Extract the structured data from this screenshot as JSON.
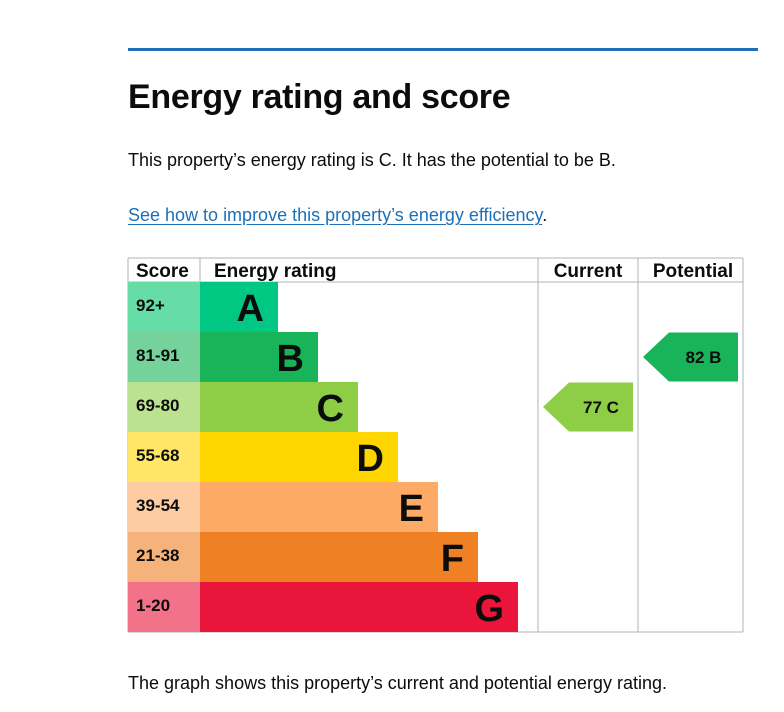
{
  "page": {
    "title": "Energy rating and score",
    "summary": "This property’s energy rating is C. It has the potential to be B.",
    "improve_link": "See how to improve this property’s energy efficiency",
    "improve_suffix": ".",
    "caption": "The graph shows this property’s current and potential energy rating."
  },
  "colors": {
    "rule": "#1d70b8",
    "link": "#1d70b8",
    "grid": "#b1b4b6"
  },
  "chart_data": {
    "type": "bar",
    "title": "",
    "headers": {
      "score": "Score",
      "rating": "Energy rating",
      "current": "Current",
      "potential": "Potential"
    },
    "bands": [
      {
        "letter": "A",
        "range": "92+",
        "color": "#00c781",
        "score_bg": "#66dda7"
      },
      {
        "letter": "B",
        "range": "81-91",
        "color": "#19b459",
        "score_bg": "#75d29b"
      },
      {
        "letter": "C",
        "range": "69-80",
        "color": "#8dce46",
        "score_bg": "#bbe290"
      },
      {
        "letter": "D",
        "range": "55-68",
        "color": "#ffd500",
        "score_bg": "#ffe666"
      },
      {
        "letter": "E",
        "range": "39-54",
        "color": "#fcaa65",
        "score_bg": "#fdcca3"
      },
      {
        "letter": "F",
        "range": "21-38",
        "color": "#ef8023",
        "score_bg": "#f5b37b"
      },
      {
        "letter": "G",
        "range": "1-20",
        "color": "#e9153b",
        "score_bg": "#f27389"
      }
    ],
    "current": {
      "score": 77,
      "band": "C",
      "color": "#8dce46"
    },
    "potential": {
      "score": 82,
      "band": "B",
      "color": "#19b459"
    }
  }
}
